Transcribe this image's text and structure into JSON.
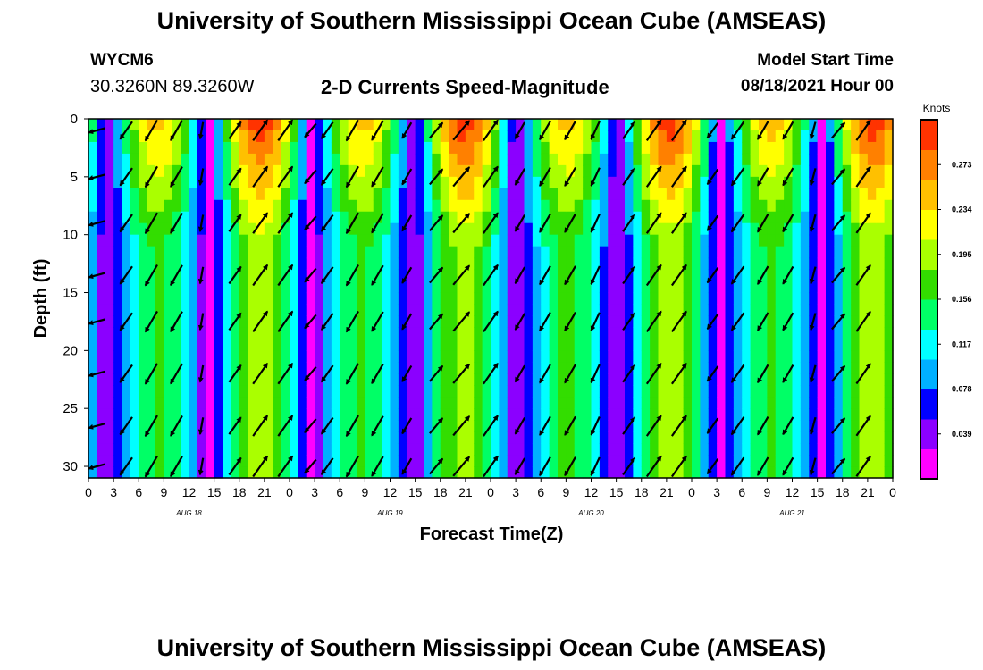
{
  "header": {
    "top_title": "University of Southern Mississippi Ocean Cube (AMSEAS)",
    "station_id": "WYCM6",
    "coordinates": "30.3260N  89.3260W",
    "subtitle": "2-D Currents Speed-Magnitude",
    "model_start_label": "Model Start Time",
    "model_start_value": "08/18/2021 Hour 00"
  },
  "footer": {
    "bottom_title": "University of Southern Mississippi Ocean Cube (AMSEAS)"
  },
  "chart_data": {
    "type": "heatmap",
    "title": "2-D Currents Speed-Magnitude",
    "xlabel": "Forecast Time(Z)",
    "ylabel": "Depth (ft)",
    "x_range_hours": [
      0,
      96
    ],
    "y_range": [
      0,
      31
    ],
    "x_ticks": [
      "0",
      "3",
      "6",
      "9",
      "12",
      "15",
      "18",
      "21",
      "0",
      "3",
      "6",
      "9",
      "12",
      "15",
      "18",
      "21",
      "0",
      "3",
      "6",
      "9",
      "12",
      "15",
      "18",
      "21",
      "0",
      "3",
      "6",
      "9",
      "12",
      "15",
      "18",
      "21",
      "0"
    ],
    "y_ticks": [
      "0",
      "5",
      "10",
      "15",
      "20",
      "25",
      "30"
    ],
    "date_labels": [
      {
        "label": "AUG 18",
        "hour": 12
      },
      {
        "label": "AUG 19",
        "hour": 36
      },
      {
        "label": "AUG 20",
        "hour": 60
      },
      {
        "label": "AUG 21",
        "hour": 84
      }
    ],
    "colorbar": {
      "units": "Knots",
      "range": [
        0.0,
        0.312
      ],
      "ticks": [
        "0.273",
        "0.234",
        "0.195",
        "0.156",
        "0.117",
        "0.078",
        "0.039"
      ]
    },
    "colormap": [
      "#ff00ff",
      "#8b00ff",
      "#0000ff",
      "#00b0ff",
      "#00ffff",
      "#00ff66",
      "#33dd00",
      "#aaff00",
      "#ffff00",
      "#ffc000",
      "#ff8000",
      "#ff3300"
    ],
    "arrow_depths_ft": [
      1,
      5,
      9,
      13.5,
      17.5,
      22,
      26.5,
      30
    ],
    "arrow_columns": [
      {
        "hour": 1,
        "speed": 0.07,
        "dir": 255
      },
      {
        "hour": 4.5,
        "speed": 0.14,
        "dir": 215
      },
      {
        "hour": 7.5,
        "speed": 0.18,
        "dir": 210
      },
      {
        "hour": 10.5,
        "speed": 0.17,
        "dir": 210
      },
      {
        "hour": 13.5,
        "speed": 0.07,
        "dir": 190
      },
      {
        "hour": 17.5,
        "speed": 0.13,
        "dir": 35
      },
      {
        "hour": 20.5,
        "speed": 0.2,
        "dir": 35
      },
      {
        "hour": 23.5,
        "speed": 0.2,
        "dir": 35
      },
      {
        "hour": 26.5,
        "speed": 0.08,
        "dir": 220
      },
      {
        "hour": 28.5,
        "speed": 0.12,
        "dir": 215
      },
      {
        "hour": 31.5,
        "speed": 0.18,
        "dir": 210
      },
      {
        "hour": 34.5,
        "speed": 0.16,
        "dir": 210
      },
      {
        "hour": 38,
        "speed": 0.09,
        "dir": 210
      },
      {
        "hour": 41.5,
        "speed": 0.12,
        "dir": 40
      },
      {
        "hour": 44.5,
        "speed": 0.2,
        "dir": 40
      },
      {
        "hour": 48,
        "speed": 0.2,
        "dir": 35
      },
      {
        "hour": 51.5,
        "speed": 0.1,
        "dir": 210
      },
      {
        "hour": 54.5,
        "speed": 0.14,
        "dir": 210
      },
      {
        "hour": 57.5,
        "speed": 0.14,
        "dir": 210
      },
      {
        "hour": 60.5,
        "speed": 0.12,
        "dir": 205
      },
      {
        "hour": 64.5,
        "speed": 0.13,
        "dir": 35
      },
      {
        "hour": 67.5,
        "speed": 0.2,
        "dir": 35
      },
      {
        "hour": 70.5,
        "speed": 0.2,
        "dir": 35
      },
      {
        "hour": 74.5,
        "speed": 0.09,
        "dir": 215
      },
      {
        "hour": 77.5,
        "speed": 0.14,
        "dir": 215
      },
      {
        "hour": 80.5,
        "speed": 0.13,
        "dir": 210
      },
      {
        "hour": 83.5,
        "speed": 0.12,
        "dir": 210
      },
      {
        "hour": 86.5,
        "speed": 0.08,
        "dir": 195
      },
      {
        "hour": 89.5,
        "speed": 0.12,
        "dir": 40
      },
      {
        "hour": 92.5,
        "speed": 0.19,
        "dir": 35
      }
    ]
  }
}
